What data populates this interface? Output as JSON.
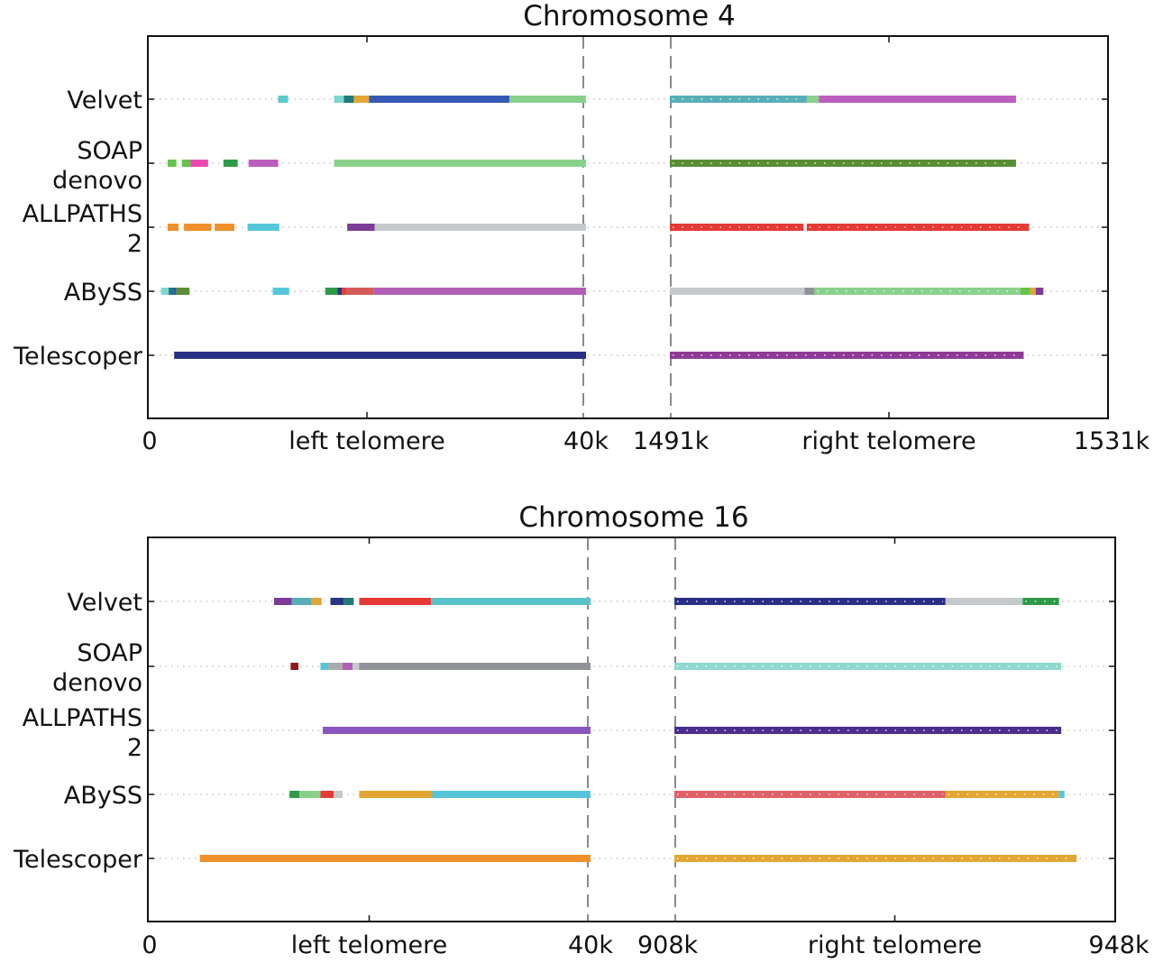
{
  "chart_data": [
    {
      "type": "bar",
      "title": "Chromosome 4",
      "x_tick_labels": [
        "0",
        "left telomere",
        "40k",
        "1491k",
        "right telomere",
        "1531k"
      ],
      "segments": [
        {
          "label": "left telomere",
          "range": [
            0,
            40000
          ]
        },
        {
          "label": "right telomere",
          "range": [
            1491000,
            1531000
          ]
        }
      ],
      "assemblers": [
        "Velvet",
        "SOAP\ndenovo",
        "ALLPATHS\n2",
        "ABySS",
        "Telescoper"
      ],
      "tracks": [
        {
          "assembler": "Velvet",
          "contigs": [
            {
              "seg": 0,
              "start": 11900,
              "end": 12800,
              "color": "#5bc8d0"
            },
            {
              "seg": 0,
              "start": 17000,
              "end": 17900,
              "color": "#7fd6cf"
            },
            {
              "seg": 0,
              "start": 17900,
              "end": 18800,
              "color": "#1f7a78"
            },
            {
              "seg": 0,
              "start": 18800,
              "end": 20200,
              "color": "#e3a632"
            },
            {
              "seg": 0,
              "start": 20200,
              "end": 33000,
              "color": "#3559b5"
            },
            {
              "seg": 0,
              "start": 33000,
              "end": 40000,
              "color": "#88d18a"
            },
            {
              "seg": 1,
              "start": 1491000,
              "end": 1503500,
              "color": "#58aeb8",
              "dotted": true
            },
            {
              "seg": 1,
              "start": 1503500,
              "end": 1504600,
              "color": "#88d18a"
            },
            {
              "seg": 1,
              "start": 1504600,
              "end": 1522600,
              "color": "#bb5fbe"
            }
          ]
        },
        {
          "assembler": "SOAP\ndenovo",
          "contigs": [
            {
              "seg": 0,
              "start": 1800,
              "end": 2600,
              "color": "#66c24a"
            },
            {
              "seg": 0,
              "start": 3100,
              "end": 3900,
              "color": "#66c24a"
            },
            {
              "seg": 0,
              "start": 3900,
              "end": 5500,
              "color": "#ea4ab0"
            },
            {
              "seg": 0,
              "start": 6900,
              "end": 8200,
              "color": "#2e9a48"
            },
            {
              "seg": 0,
              "start": 9200,
              "end": 11900,
              "color": "#bb5fbe"
            },
            {
              "seg": 0,
              "start": 17000,
              "end": 40000,
              "color": "#88d18a"
            },
            {
              "seg": 1,
              "start": 1491000,
              "end": 1522600,
              "color": "#5a8e36",
              "dotted": true
            }
          ]
        },
        {
          "assembler": "ALLPATHS\n2",
          "contigs": [
            {
              "seg": 0,
              "start": 1800,
              "end": 2800,
              "color": "#f0902a"
            },
            {
              "seg": 0,
              "start": 3300,
              "end": 5800,
              "color": "#f0902a"
            },
            {
              "seg": 0,
              "start": 6100,
              "end": 7900,
              "color": "#f0902a"
            },
            {
              "seg": 0,
              "start": 9100,
              "end": 12000,
              "color": "#55c6da"
            },
            {
              "seg": 0,
              "start": 18200,
              "end": 20700,
              "color": "#7d3c98"
            },
            {
              "seg": 0,
              "start": 20700,
              "end": 40000,
              "color": "#c6c9cc"
            },
            {
              "seg": 1,
              "start": 1491000,
              "end": 1503200,
              "color": "#e53a35",
              "dotted": true
            },
            {
              "seg": 1,
              "start": 1503500,
              "end": 1523800,
              "color": "#e53a35",
              "dotted": true
            }
          ]
        },
        {
          "assembler": "ABySS",
          "contigs": [
            {
              "seg": 0,
              "start": 1200,
              "end": 1900,
              "color": "#7fd6cf"
            },
            {
              "seg": 0,
              "start": 1900,
              "end": 2300,
              "color": "#1f7a78"
            },
            {
              "seg": 0,
              "start": 2300,
              "end": 2600,
              "color": "#3559b5"
            },
            {
              "seg": 0,
              "start": 2600,
              "end": 3800,
              "color": "#5a8e36"
            },
            {
              "seg": 0,
              "start": 11400,
              "end": 12900,
              "color": "#55c6da"
            },
            {
              "seg": 0,
              "start": 16200,
              "end": 17300,
              "color": "#2e9a48"
            },
            {
              "seg": 0,
              "start": 17300,
              "end": 17700,
              "color": "#2a3585"
            },
            {
              "seg": 0,
              "start": 17700,
              "end": 18100,
              "color": "#e53a35"
            },
            {
              "seg": 0,
              "start": 18100,
              "end": 20600,
              "color": "#d25b57"
            },
            {
              "seg": 0,
              "start": 20600,
              "end": 40000,
              "color": "#b05fb4"
            },
            {
              "seg": 1,
              "start": 1491000,
              "end": 1503300,
              "color": "#c6c9cc"
            },
            {
              "seg": 1,
              "start": 1503300,
              "end": 1504200,
              "color": "#8f9296"
            },
            {
              "seg": 1,
              "start": 1504200,
              "end": 1523000,
              "color": "#88d18a",
              "dotted": true
            },
            {
              "seg": 1,
              "start": 1523000,
              "end": 1523900,
              "color": "#66c24a"
            },
            {
              "seg": 1,
              "start": 1523900,
              "end": 1524400,
              "color": "#e3a632"
            },
            {
              "seg": 1,
              "start": 1524400,
              "end": 1525100,
              "color": "#7d3c98"
            }
          ]
        },
        {
          "assembler": "Telescoper",
          "contigs": [
            {
              "seg": 0,
              "start": 2400,
              "end": 40000,
              "color": "#2a2f86"
            },
            {
              "seg": 1,
              "start": 1491000,
              "end": 1523300,
              "color": "#8e3a96",
              "dotted": true
            }
          ]
        }
      ]
    },
    {
      "type": "bar",
      "title": "Chromosome 16",
      "x_tick_labels": [
        "0",
        "left telomere",
        "40k",
        "908k",
        "right telomere",
        "948k"
      ],
      "segments": [
        {
          "label": "left telomere",
          "range": [
            0,
            40000
          ]
        },
        {
          "label": "right telomere",
          "range": [
            908000,
            948000
          ]
        }
      ],
      "assemblers": [
        "Velvet",
        "SOAP\ndenovo",
        "ALLPATHS\n2",
        "ABySS",
        "Telescoper"
      ],
      "tracks": [
        {
          "assembler": "Velvet",
          "contigs": [
            {
              "seg": 0,
              "start": 11400,
              "end": 13000,
              "color": "#7d3c98"
            },
            {
              "seg": 0,
              "start": 13000,
              "end": 14800,
              "color": "#58aeb8"
            },
            {
              "seg": 0,
              "start": 14800,
              "end": 15700,
              "color": "#e3a632"
            },
            {
              "seg": 0,
              "start": 16500,
              "end": 17700,
              "color": "#2a3585"
            },
            {
              "seg": 0,
              "start": 17700,
              "end": 18600,
              "color": "#1f7a78"
            },
            {
              "seg": 0,
              "start": 19100,
              "end": 25600,
              "color": "#e53a35"
            },
            {
              "seg": 0,
              "start": 25600,
              "end": 40000,
              "color": "#5bc3cc"
            },
            {
              "seg": 1,
              "start": 908000,
              "end": 932600,
              "color": "#2a2f86",
              "dotted": true
            },
            {
              "seg": 1,
              "start": 932600,
              "end": 939600,
              "color": "#c6c9cc"
            },
            {
              "seg": 1,
              "start": 939600,
              "end": 942900,
              "color": "#2e9a48",
              "dotted": true
            }
          ]
        },
        {
          "assembler": "SOAP\ndenovo",
          "contigs": [
            {
              "seg": 0,
              "start": 12900,
              "end": 13600,
              "color": "#8b1a1a"
            },
            {
              "seg": 0,
              "start": 15600,
              "end": 16300,
              "color": "#55c6da"
            },
            {
              "seg": 0,
              "start": 16300,
              "end": 17600,
              "color": "#a8abae"
            },
            {
              "seg": 0,
              "start": 17600,
              "end": 18500,
              "color": "#b05fb4"
            },
            {
              "seg": 0,
              "start": 18500,
              "end": 19100,
              "color": "#c6c9cc"
            },
            {
              "seg": 0,
              "start": 19100,
              "end": 40000,
              "color": "#8f9296"
            },
            {
              "seg": 1,
              "start": 908000,
              "end": 943100,
              "color": "#8ed8d0",
              "dotted": true
            }
          ]
        },
        {
          "assembler": "ALLPATHS\n2",
          "contigs": [
            {
              "seg": 0,
              "start": 15800,
              "end": 40000,
              "color": "#8a55c0"
            },
            {
              "seg": 1,
              "start": 908000,
              "end": 943100,
              "color": "#4a2e8c",
              "dotted": true
            }
          ]
        },
        {
          "assembler": "ABySS",
          "contigs": [
            {
              "seg": 0,
              "start": 12800,
              "end": 13700,
              "color": "#2e9a48"
            },
            {
              "seg": 0,
              "start": 13700,
              "end": 15600,
              "color": "#88d18a"
            },
            {
              "seg": 0,
              "start": 15600,
              "end": 16800,
              "color": "#e53a35"
            },
            {
              "seg": 0,
              "start": 16800,
              "end": 17600,
              "color": "#c6c9cc"
            },
            {
              "seg": 0,
              "start": 19100,
              "end": 25700,
              "color": "#e3a632"
            },
            {
              "seg": 0,
              "start": 25700,
              "end": 40000,
              "color": "#55c6da"
            },
            {
              "seg": 1,
              "start": 908000,
              "end": 932600,
              "color": "#e06068",
              "dotted": true
            },
            {
              "seg": 1,
              "start": 932600,
              "end": 942900,
              "color": "#e3a632",
              "dotted": true
            },
            {
              "seg": 1,
              "start": 942900,
              "end": 943400,
              "color": "#55c6da"
            }
          ]
        },
        {
          "assembler": "Telescoper",
          "contigs": [
            {
              "seg": 0,
              "start": 4700,
              "end": 40000,
              "color": "#f0902a"
            },
            {
              "seg": 1,
              "start": 908000,
              "end": 944500,
              "color": "#e3a632",
              "dotted": true
            }
          ]
        }
      ]
    }
  ]
}
